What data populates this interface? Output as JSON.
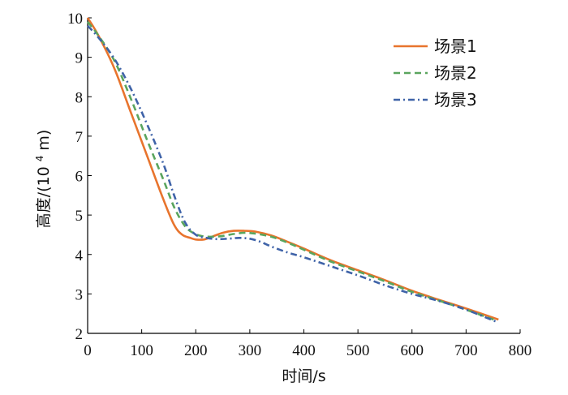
{
  "chart_data": {
    "type": "line",
    "title": "",
    "xlabel": "时间/s",
    "ylabel_main": "高度/(10",
    "ylabel_exp": "4",
    "ylabel_tail": "m)",
    "xlim": [
      0,
      800
    ],
    "ylim": [
      2,
      10
    ],
    "xticks": [
      0,
      100,
      200,
      300,
      400,
      500,
      600,
      700,
      800
    ],
    "yticks": [
      2,
      3,
      4,
      5,
      6,
      7,
      8,
      9,
      10
    ],
    "grid": false,
    "legend_position": "top-right",
    "series": [
      {
        "name": "场景1",
        "color": "#e8742d",
        "style": "solid",
        "x": [
          0,
          20,
          50,
          80,
          110,
          140,
          160,
          175,
          190,
          200,
          215,
          230,
          250,
          270,
          290,
          310,
          340,
          370,
          400,
          450,
          500,
          550,
          600,
          650,
          700,
          760
        ],
        "y": [
          10.0,
          9.55,
          8.7,
          7.6,
          6.5,
          5.4,
          4.75,
          4.5,
          4.42,
          4.38,
          4.38,
          4.45,
          4.55,
          4.6,
          4.6,
          4.58,
          4.48,
          4.32,
          4.15,
          3.85,
          3.6,
          3.35,
          3.08,
          2.85,
          2.63,
          2.35
        ]
      },
      {
        "name": "场景2",
        "color": "#5aa55e",
        "style": "dashed",
        "x": [
          0,
          20,
          50,
          80,
          110,
          140,
          160,
          180,
          195,
          210,
          230,
          250,
          270,
          290,
          310,
          340,
          370,
          400,
          450,
          500,
          550,
          600,
          650,
          700,
          755
        ],
        "y": [
          9.9,
          9.55,
          8.9,
          7.95,
          6.9,
          5.9,
          5.2,
          4.72,
          4.55,
          4.47,
          4.45,
          4.47,
          4.52,
          4.55,
          4.53,
          4.45,
          4.3,
          4.12,
          3.82,
          3.57,
          3.32,
          3.05,
          2.83,
          2.6,
          2.33
        ]
      },
      {
        "name": "场景3",
        "color": "#3f63a8",
        "style": "dashdot",
        "x": [
          0,
          20,
          50,
          80,
          110,
          140,
          160,
          180,
          200,
          220,
          240,
          260,
          280,
          300,
          320,
          340,
          370,
          400,
          450,
          500,
          550,
          600,
          650,
          700,
          755
        ],
        "y": [
          9.8,
          9.5,
          8.95,
          8.2,
          7.3,
          6.3,
          5.5,
          4.82,
          4.5,
          4.42,
          4.39,
          4.4,
          4.42,
          4.4,
          4.32,
          4.2,
          4.05,
          3.93,
          3.7,
          3.47,
          3.22,
          3.0,
          2.82,
          2.6,
          2.3
        ]
      }
    ]
  }
}
